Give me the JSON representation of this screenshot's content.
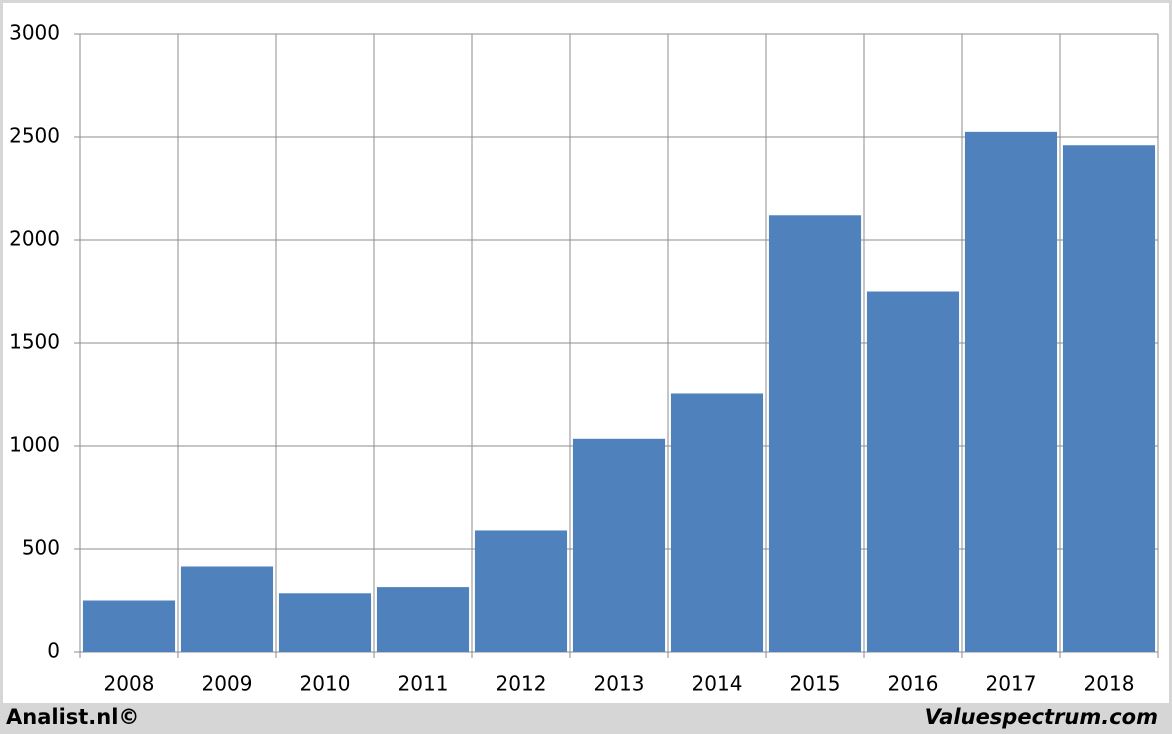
{
  "chart_data": {
    "type": "bar",
    "categories": [
      "2008",
      "2009",
      "2010",
      "2011",
      "2012",
      "2013",
      "2014",
      "2015",
      "2016",
      "2017",
      "2018"
    ],
    "values": [
      250,
      415,
      285,
      315,
      590,
      1035,
      1255,
      2120,
      1750,
      2525,
      2460
    ],
    "color": "#4f81bd",
    "ylim": [
      0,
      3000
    ],
    "yticks": [
      0,
      500,
      1000,
      1500,
      2000,
      2500,
      3000
    ],
    "grid": true
  },
  "footer": {
    "left": "Analist.nl©",
    "right": "Valuespectrum.com"
  }
}
